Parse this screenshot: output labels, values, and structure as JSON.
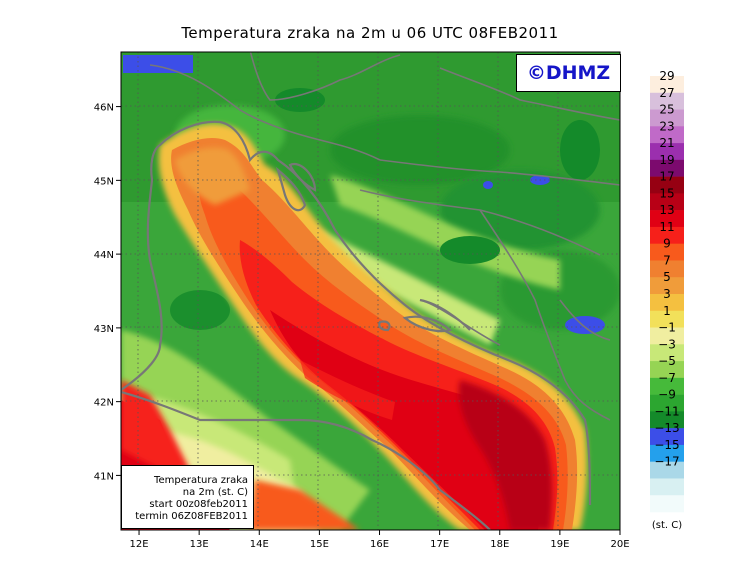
{
  "title": "Temperatura zraka na 2m u 06 UTC 08FEB2011",
  "copyright": "©DHMZ",
  "info_box": {
    "line1": "Temperatura zraka",
    "line2": "na 2m (st. C)",
    "line3": "start 00z08feb2011",
    "line4": "termin 06Z08FEB2011"
  },
  "x_axis": {
    "ticks": [
      {
        "value": 12,
        "label": "12E"
      },
      {
        "value": 13,
        "label": "13E"
      },
      {
        "value": 14,
        "label": "14E"
      },
      {
        "value": 15,
        "label": "15E"
      },
      {
        "value": 16,
        "label": "16E"
      },
      {
        "value": 17,
        "label": "17E"
      },
      {
        "value": 18,
        "label": "18E"
      },
      {
        "value": 19,
        "label": "19E"
      },
      {
        "value": 20,
        "label": "20E"
      }
    ],
    "range": [
      11.7,
      20.0
    ]
  },
  "y_axis": {
    "ticks": [
      {
        "value": 41,
        "label": "41N"
      },
      {
        "value": 42,
        "label": "42N"
      },
      {
        "value": 43,
        "label": "43N"
      },
      {
        "value": 44,
        "label": "44N"
      },
      {
        "value": 45,
        "label": "45N"
      },
      {
        "value": 46,
        "label": "46N"
      }
    ],
    "range": [
      40.26,
      46.74
    ]
  },
  "legend": {
    "unit": "(st. C)",
    "bands": [
      {
        "color": "#fdeede"
      },
      {
        "color": "#d8c0dc"
      },
      {
        "color": "#cc9ad0"
      },
      {
        "color": "#c06ac8"
      },
      {
        "color": "#9b2fae"
      },
      {
        "color": "#7c0a6e"
      },
      {
        "color": "#960012"
      },
      {
        "color": "#b80016"
      },
      {
        "color": "#e00014"
      },
      {
        "color": "#f6201a"
      },
      {
        "color": "#f85a1c"
      },
      {
        "color": "#f08030"
      },
      {
        "color": "#f09c3a"
      },
      {
        "color": "#f4c040"
      },
      {
        "color": "#f2e05a"
      },
      {
        "color": "#f0eea0"
      },
      {
        "color": "#c8e878"
      },
      {
        "color": "#96d454"
      },
      {
        "color": "#46ba3a"
      },
      {
        "color": "#2ca630"
      },
      {
        "color": "#148a2a"
      },
      {
        "color": "#3c4ee8"
      },
      {
        "color": "#24a0ec"
      },
      {
        "color": "#aad8e8"
      },
      {
        "color": "#d8f0f2"
      },
      {
        "color": "#f2fbfb"
      }
    ],
    "labels": [
      "29",
      "27",
      "25",
      "23",
      "21",
      "19",
      "17",
      "15",
      "13",
      "11",
      "9",
      "7",
      "5",
      "3",
      "1",
      "−1",
      "−3",
      "−5",
      "−7",
      "−9",
      "−11",
      "−13",
      "−15",
      "−17"
    ]
  }
}
